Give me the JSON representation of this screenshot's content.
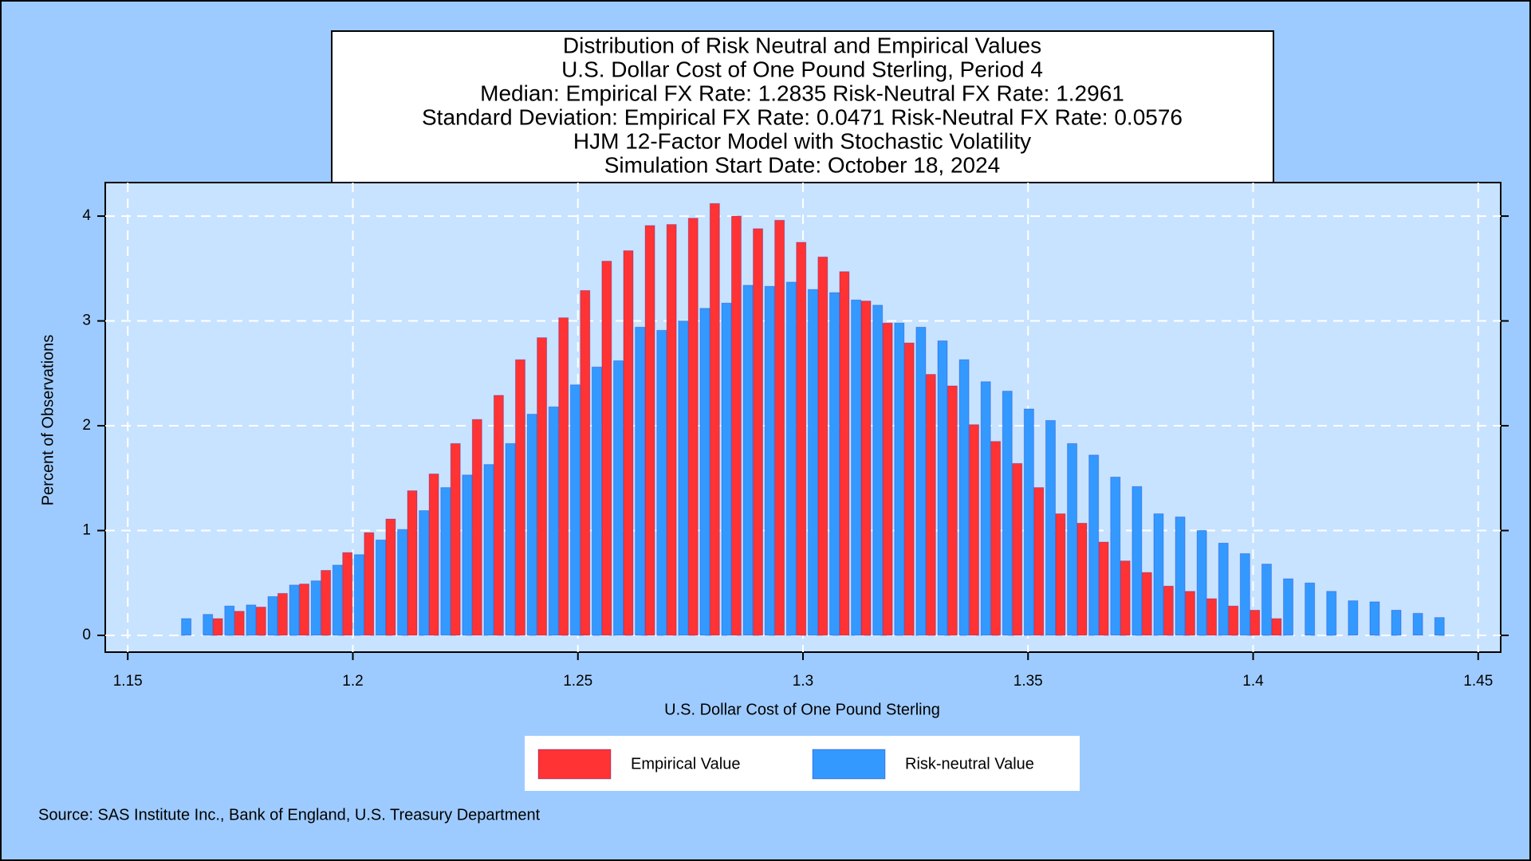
{
  "chart_data": {
    "type": "bar",
    "title_lines": [
      "Distribution of Risk Neutral and Empirical Values",
      "U.S. Dollar Cost of One Pound Sterling, Period 4",
      "Median: Empirical FX Rate:  1.2835   Risk-Neutral FX Rate:  1.2961",
      "Standard Deviation: Empirical FX Rate:  0.0471   Risk-Neutral FX Rate:  0.0576",
      "HJM 12-Factor Model with Stochastic Volatility",
      "Simulation Start Date: October 18, 2024"
    ],
    "xlabel": "U.S. Dollar Cost of One Pound Sterling",
    "ylabel": "Percent of Observations",
    "source": "Source: SAS Institute Inc., Bank of England, U.S. Treasury Department",
    "xlim": [
      1.145,
      1.455
    ],
    "xticks": [
      1.15,
      1.2,
      1.25,
      1.3,
      1.35,
      1.4,
      1.45
    ],
    "ylim": [
      -0.16,
      4.32
    ],
    "yticks": [
      0,
      1,
      2,
      3,
      4
    ],
    "grid": true,
    "legend": "bottom",
    "series": [
      {
        "name": "Empirical Value",
        "color": "#ff3333",
        "x": [
          1.17,
          1.1748,
          1.1796,
          1.1844,
          1.1892,
          1.194,
          1.1988,
          1.2036,
          1.2084,
          1.2132,
          1.218,
          1.2228,
          1.2276,
          1.2324,
          1.2372,
          1.242,
          1.2468,
          1.2516,
          1.2564,
          1.2612,
          1.266,
          1.2708,
          1.2756,
          1.2804,
          1.2852,
          1.29,
          1.2948,
          1.2996,
          1.3044,
          1.3092,
          1.314,
          1.3188,
          1.3236,
          1.3284,
          1.3332,
          1.338,
          1.3428,
          1.3476,
          1.3524,
          1.3572,
          1.362,
          1.3668,
          1.3716,
          1.3764,
          1.3812,
          1.386,
          1.3908,
          1.3956,
          1.4004,
          1.4052
        ],
        "values": [
          0.16,
          0.23,
          0.27,
          0.4,
          0.49,
          0.62,
          0.79,
          0.98,
          1.11,
          1.38,
          1.54,
          1.83,
          2.06,
          2.29,
          2.63,
          2.84,
          3.03,
          3.29,
          3.57,
          3.67,
          3.91,
          3.92,
          3.98,
          4.12,
          4.0,
          3.88,
          3.96,
          3.75,
          3.61,
          3.47,
          3.19,
          2.98,
          2.79,
          2.49,
          2.38,
          2.01,
          1.85,
          1.64,
          1.41,
          1.16,
          1.07,
          0.89,
          0.71,
          0.6,
          0.47,
          0.42,
          0.35,
          0.28,
          0.24,
          0.16
        ]
      },
      {
        "name": "Risk-neutral Value",
        "color": "#3399ff",
        "x": [
          1.163,
          1.1678,
          1.1726,
          1.1774,
          1.1822,
          1.187,
          1.1918,
          1.1966,
          1.2014,
          1.2062,
          1.211,
          1.2158,
          1.2206,
          1.2254,
          1.2302,
          1.235,
          1.2398,
          1.2446,
          1.2494,
          1.2542,
          1.259,
          1.2638,
          1.2686,
          1.2734,
          1.2782,
          1.283,
          1.2878,
          1.2926,
          1.2974,
          1.3022,
          1.307,
          1.3118,
          1.3166,
          1.3214,
          1.3262,
          1.331,
          1.3358,
          1.3406,
          1.3454,
          1.3502,
          1.355,
          1.3598,
          1.3646,
          1.3694,
          1.3742,
          1.379,
          1.3838,
          1.3886,
          1.3934,
          1.3982,
          1.403,
          1.4078,
          1.4126,
          1.4174,
          1.4222,
          1.427,
          1.4318,
          1.4366,
          1.4414
        ],
        "values": [
          0.16,
          0.2,
          0.28,
          0.29,
          0.37,
          0.48,
          0.52,
          0.67,
          0.77,
          0.91,
          1.01,
          1.19,
          1.41,
          1.53,
          1.63,
          1.83,
          2.11,
          2.18,
          2.39,
          2.56,
          2.62,
          2.94,
          2.91,
          3.0,
          3.12,
          3.17,
          3.34,
          3.33,
          3.37,
          3.3,
          3.27,
          3.2,
          3.15,
          2.98,
          2.94,
          2.81,
          2.63,
          2.42,
          2.33,
          2.16,
          2.05,
          1.83,
          1.72,
          1.51,
          1.42,
          1.16,
          1.13,
          1.0,
          0.88,
          0.78,
          0.68,
          0.54,
          0.5,
          0.42,
          0.33,
          0.32,
          0.24,
          0.21,
          0.17
        ]
      }
    ]
  }
}
